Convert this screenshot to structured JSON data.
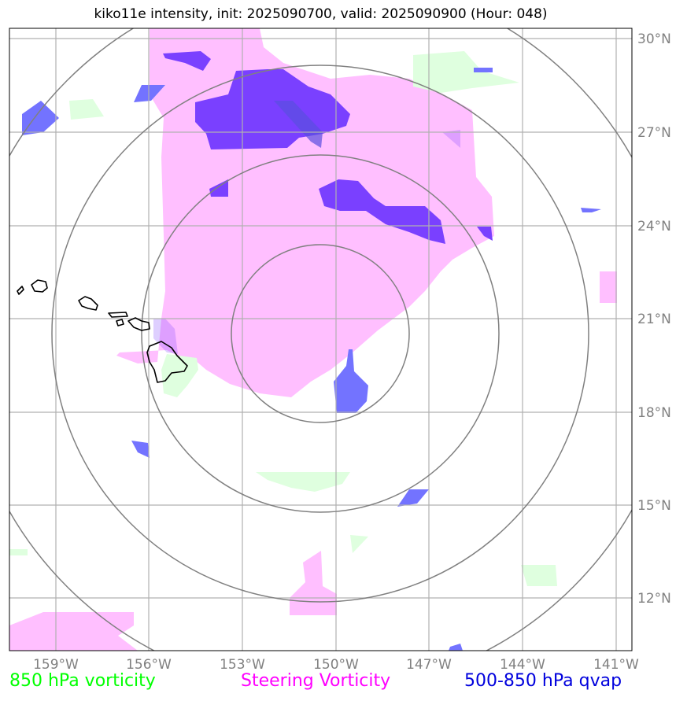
{
  "title": "kiko11e intensity, init: 2025090700, valid: 2025090900 (Hour: 048)",
  "axes": {
    "lon_labels": [
      "159°W",
      "156°W",
      "153°W",
      "150°W",
      "147°W",
      "144°W",
      "141°W"
    ],
    "lat_labels": [
      "30°N",
      "27°N",
      "24°N",
      "21°N",
      "18°N",
      "15°N",
      "12°N"
    ]
  },
  "legend": [
    {
      "label": "850 hPa vorticity",
      "color": "#00ff00"
    },
    {
      "label": "Steering Vorticity",
      "color": "#ff00ff"
    },
    {
      "label": "500-850 hPa qvap",
      "color": "#0000dd"
    }
  ],
  "colors": {
    "steering_fill": "#ffbfff",
    "vort850_fill": "#dfffdf",
    "qvap_fill": "#7373ff",
    "overlap_fill": "#7a40ff",
    "grid": "#b0b0b0",
    "rings": "#808080",
    "coast": "#000000"
  }
}
